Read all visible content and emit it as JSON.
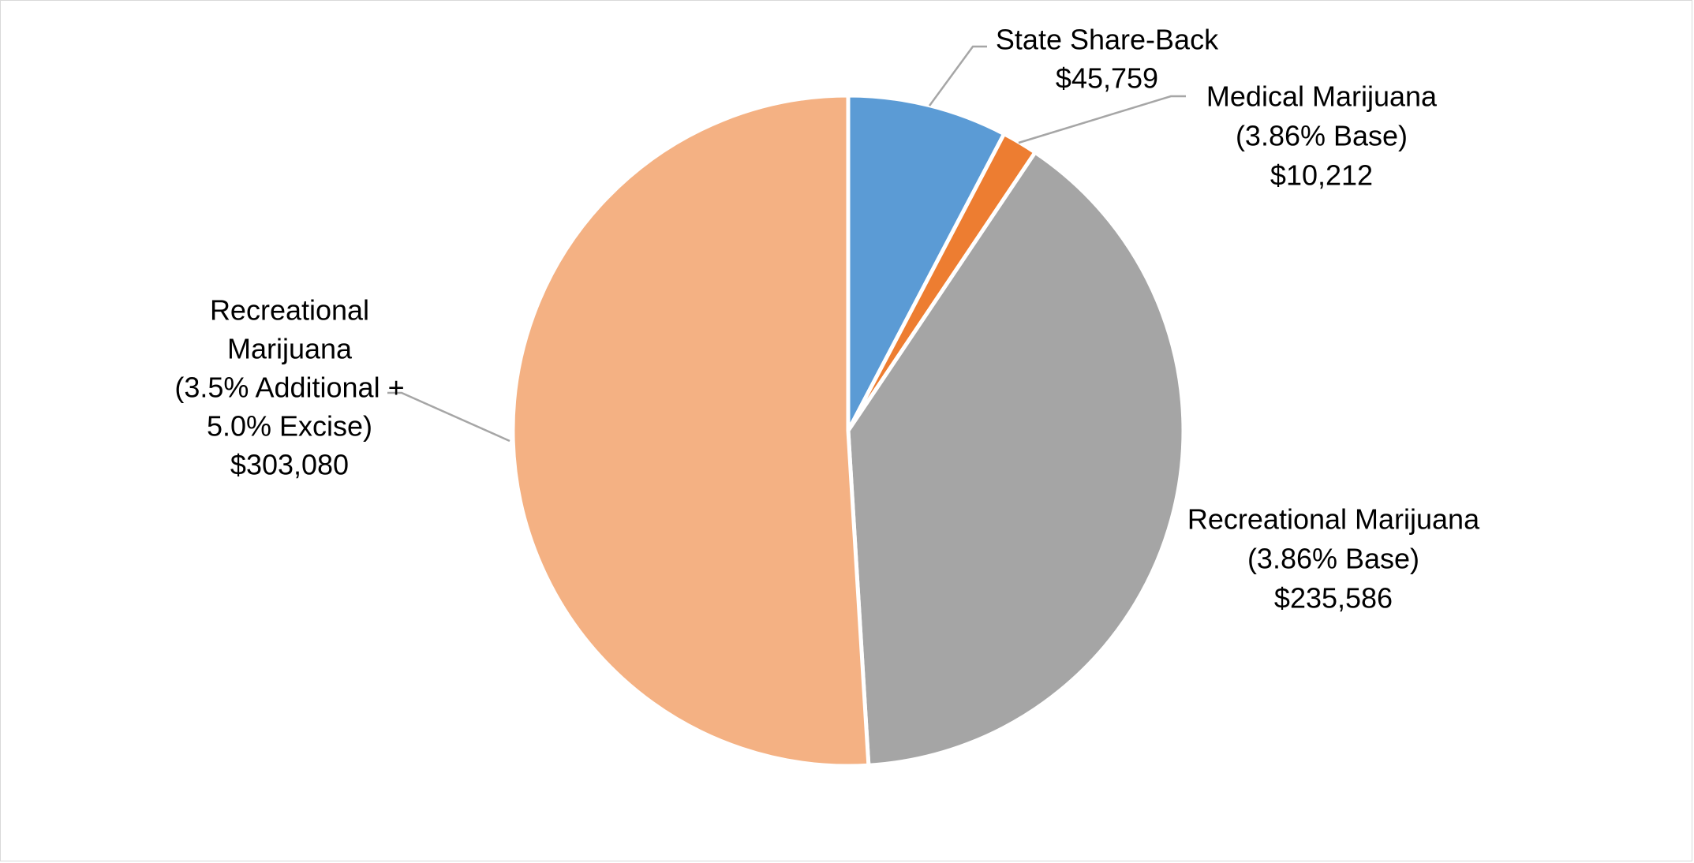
{
  "chart_data": {
    "type": "pie",
    "title": "",
    "start_angle_deg": 0,
    "direction": "clockwise",
    "legend": "none",
    "slices": [
      {
        "name": "State Share-Back",
        "value": 45759,
        "value_label": "$45,759",
        "label_lines": [
          "State Share-Back",
          "$45,759"
        ],
        "color": "#5B9BD5"
      },
      {
        "name": "Medical Marijuana (3.86% Base)",
        "value": 10212,
        "value_label": "$10,212",
        "label_lines": [
          "Medical Marijuana",
          "(3.86% Base)",
          "$10,212"
        ],
        "color": "#ED7D31"
      },
      {
        "name": "Recreational Marijuana (3.86% Base)",
        "value": 235586,
        "value_label": "$235,586",
        "label_lines": [
          "Recreational Marijuana",
          "(3.86% Base)",
          "$235,586"
        ],
        "color": "#A5A5A5"
      },
      {
        "name": "Recreational Marijuana (3.5% Additional + 5.0% Excise)",
        "value": 303080,
        "value_label": "$303,080",
        "label_lines": [
          "Recreational",
          "Marijuana",
          "(3.5% Additional +",
          "5.0% Excise)",
          "$303,080"
        ],
        "color": "#F4B183"
      }
    ]
  }
}
